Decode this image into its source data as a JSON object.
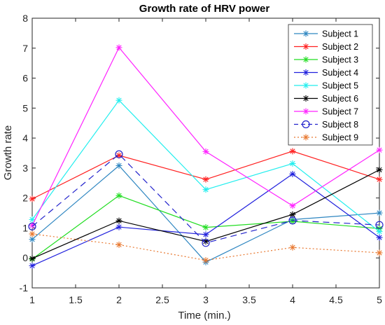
{
  "chart_data": {
    "type": "line",
    "title": "Growth rate of HRV power",
    "xlabel": "Time (min.)",
    "ylabel": "Growth rate",
    "xlim": [
      1,
      5
    ],
    "ylim": [
      -1,
      8
    ],
    "x_ticks": [
      "1",
      "1.5",
      "2",
      "2.5",
      "3",
      "3.5",
      "4",
      "4.5",
      "5"
    ],
    "y_ticks": [
      "-1",
      "0",
      "1",
      "2",
      "3",
      "4",
      "5",
      "6",
      "7",
      "8"
    ],
    "grid": false,
    "legend_position": "top-right",
    "x": [
      1,
      2,
      3,
      4,
      5
    ],
    "series": [
      {
        "name": "Subject 1",
        "values": [
          0.62,
          3.08,
          -0.14,
          1.28,
          1.5
        ],
        "color": "#2e86c1",
        "marker": "asterisk",
        "dash": "solid"
      },
      {
        "name": "Subject 2",
        "values": [
          1.97,
          3.42,
          2.62,
          3.56,
          2.62
        ],
        "color": "#ff2020",
        "marker": "asterisk",
        "dash": "solid"
      },
      {
        "name": "Subject 3",
        "values": [
          -0.04,
          2.08,
          1.02,
          1.22,
          0.98
        ],
        "color": "#22dd22",
        "marker": "asterisk",
        "dash": "solid"
      },
      {
        "name": "Subject 4",
        "values": [
          -0.26,
          1.03,
          0.78,
          2.8,
          0.68
        ],
        "color": "#2020dd",
        "marker": "asterisk",
        "dash": "solid"
      },
      {
        "name": "Subject 5",
        "values": [
          1.28,
          5.26,
          2.28,
          3.15,
          0.88
        ],
        "color": "#22eeee",
        "marker": "asterisk",
        "dash": "solid"
      },
      {
        "name": "Subject 6",
        "values": [
          -0.02,
          1.24,
          0.55,
          1.45,
          2.94
        ],
        "color": "#000000",
        "marker": "asterisk",
        "dash": "solid"
      },
      {
        "name": "Subject 7",
        "values": [
          1.08,
          7.02,
          3.55,
          1.74,
          3.6
        ],
        "color": "#ff22ff",
        "marker": "asterisk",
        "dash": "solid"
      },
      {
        "name": "Subject 8",
        "values": [
          1.05,
          3.46,
          0.5,
          1.25,
          1.1
        ],
        "color": "#2222cc",
        "marker": "circle",
        "dash": "dashed"
      },
      {
        "name": "Subject 9",
        "values": [
          0.8,
          0.44,
          -0.08,
          0.35,
          0.17
        ],
        "color": "#e8772e",
        "marker": "asterisk",
        "dash": "dotted"
      }
    ]
  }
}
